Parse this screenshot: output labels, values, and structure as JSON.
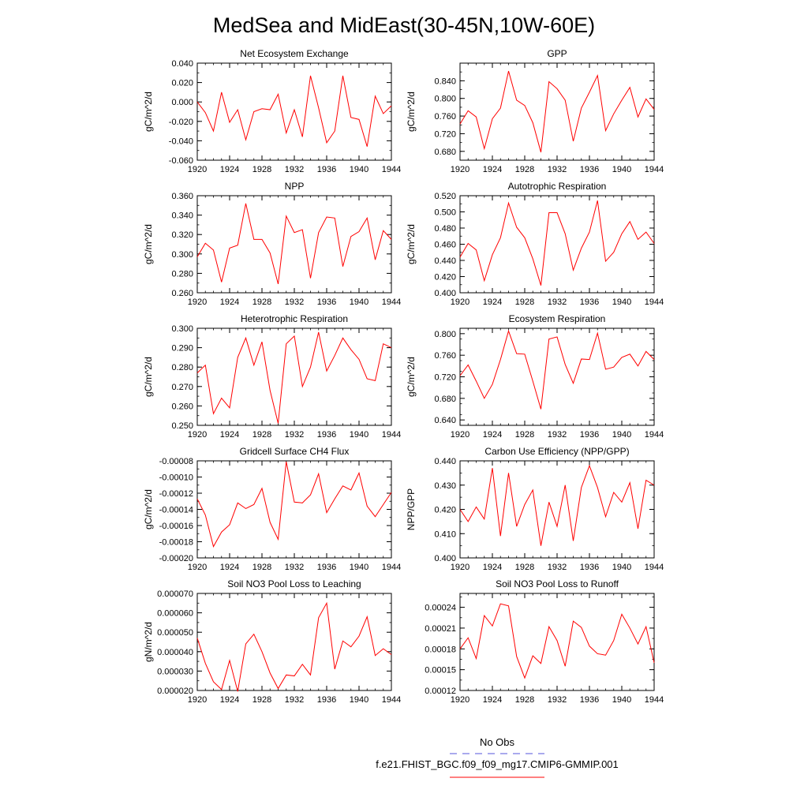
{
  "page": {
    "title": "MedSea and MidEast(30-45N,10W-60E)"
  },
  "legend": {
    "obs_label": "No Obs",
    "obs_color": "#5555dd",
    "case_label": "f.e21.FHIST_BGC.f09_f09_mg17.CMIP6-GMMIP.001",
    "case_color": "#ff0000"
  },
  "chart_data": [
    {
      "type": "line",
      "title": "Net Ecosystem Exchange",
      "ylabel": "gC/m^2/d",
      "ylim": [
        -0.06,
        0.04
      ],
      "yticks": [
        -0.06,
        -0.04,
        -0.02,
        0.0,
        0.02,
        0.04
      ],
      "ytick_labels": [
        "-0.060",
        "-0.040",
        "-0.020",
        "0.000",
        "0.020",
        "0.040"
      ],
      "xlim": [
        1920,
        1944
      ],
      "xticks": [
        1920,
        1924,
        1928,
        1932,
        1936,
        1940,
        1944
      ],
      "xtick_labels": [
        "1920",
        "1924",
        "1928",
        "1932",
        "1936",
        "1940",
        "1944"
      ],
      "x": [
        1920,
        1921,
        1922,
        1923,
        1924,
        1925,
        1926,
        1927,
        1928,
        1929,
        1930,
        1931,
        1932,
        1933,
        1934,
        1935,
        1936,
        1937,
        1938,
        1939,
        1940,
        1941,
        1942,
        1943,
        1944
      ],
      "series": [
        {
          "name": "f.e21.FHIST_BGC.f09_f09_mg17.CMIP6-GMMIP.001",
          "values": [
            0.0,
            -0.011,
            -0.03,
            0.01,
            -0.021,
            -0.008,
            -0.039,
            -0.01,
            -0.007,
            -0.008,
            0.008,
            -0.032,
            -0.008,
            -0.036,
            0.027,
            -0.006,
            -0.042,
            -0.03,
            0.027,
            -0.016,
            -0.018,
            -0.046,
            0.006,
            -0.012,
            -0.004
          ]
        }
      ]
    },
    {
      "type": "line",
      "title": "GPP",
      "ylabel": "gC/m^2/d",
      "ylim": [
        0.66,
        0.88
      ],
      "yticks": [
        0.68,
        0.72,
        0.76,
        0.8,
        0.84
      ],
      "ytick_labels": [
        "0.680",
        "0.720",
        "0.760",
        "0.800",
        "0.840"
      ],
      "xlim": [
        1920,
        1944
      ],
      "xticks": [
        1920,
        1924,
        1928,
        1932,
        1936,
        1940,
        1944
      ],
      "xtick_labels": [
        "1920",
        "1924",
        "1928",
        "1932",
        "1936",
        "1940",
        "1944"
      ],
      "x": [
        1920,
        1921,
        1922,
        1923,
        1924,
        1925,
        1926,
        1927,
        1928,
        1929,
        1930,
        1931,
        1932,
        1933,
        1934,
        1935,
        1936,
        1937,
        1938,
        1939,
        1940,
        1941,
        1942,
        1943,
        1944
      ],
      "series": [
        {
          "name": "f.e21.FHIST_BGC.f09_f09_mg17.CMIP6-GMMIP.001",
          "values": [
            0.742,
            0.772,
            0.758,
            0.686,
            0.754,
            0.778,
            0.862,
            0.796,
            0.784,
            0.745,
            0.678,
            0.838,
            0.822,
            0.796,
            0.703,
            0.778,
            0.814,
            0.852,
            0.727,
            0.765,
            0.796,
            0.825,
            0.758,
            0.799,
            0.775
          ]
        }
      ]
    },
    {
      "type": "line",
      "title": "NPP",
      "ylabel": "gC/m^2/d",
      "ylim": [
        0.26,
        0.36
      ],
      "yticks": [
        0.26,
        0.28,
        0.3,
        0.32,
        0.34,
        0.36
      ],
      "ytick_labels": [
        "0.260",
        "0.280",
        "0.300",
        "0.320",
        "0.340",
        "0.360"
      ],
      "xlim": [
        1920,
        1944
      ],
      "xticks": [
        1920,
        1924,
        1928,
        1932,
        1936,
        1940,
        1944
      ],
      "xtick_labels": [
        "1920",
        "1924",
        "1928",
        "1932",
        "1936",
        "1940",
        "1944"
      ],
      "x": [
        1920,
        1921,
        1922,
        1923,
        1924,
        1925,
        1926,
        1927,
        1928,
        1929,
        1930,
        1931,
        1932,
        1933,
        1934,
        1935,
        1936,
        1937,
        1938,
        1939,
        1940,
        1941,
        1942,
        1943,
        1944
      ],
      "series": [
        {
          "name": "f.e21.FHIST_BGC.f09_f09_mg17.CMIP6-GMMIP.001",
          "values": [
            0.297,
            0.311,
            0.304,
            0.271,
            0.306,
            0.309,
            0.352,
            0.315,
            0.315,
            0.301,
            0.269,
            0.339,
            0.322,
            0.325,
            0.275,
            0.322,
            0.338,
            0.337,
            0.287,
            0.318,
            0.323,
            0.337,
            0.294,
            0.324,
            0.315
          ]
        }
      ]
    },
    {
      "type": "line",
      "title": "Autotrophic Respiration",
      "ylabel": "gC/m^2/d",
      "ylim": [
        0.4,
        0.52
      ],
      "yticks": [
        0.4,
        0.42,
        0.44,
        0.46,
        0.48,
        0.5,
        0.52
      ],
      "ytick_labels": [
        "0.400",
        "0.420",
        "0.440",
        "0.460",
        "0.480",
        "0.500",
        "0.520"
      ],
      "xlim": [
        1920,
        1944
      ],
      "xticks": [
        1920,
        1924,
        1928,
        1932,
        1936,
        1940,
        1944
      ],
      "xtick_labels": [
        "1920",
        "1924",
        "1928",
        "1932",
        "1936",
        "1940",
        "1944"
      ],
      "x": [
        1920,
        1921,
        1922,
        1923,
        1924,
        1925,
        1926,
        1927,
        1928,
        1929,
        1930,
        1931,
        1932,
        1933,
        1934,
        1935,
        1936,
        1937,
        1938,
        1939,
        1940,
        1941,
        1942,
        1943,
        1944
      ],
      "series": [
        {
          "name": "f.e21.FHIST_BGC.f09_f09_mg17.CMIP6-GMMIP.001",
          "values": [
            0.444,
            0.461,
            0.453,
            0.415,
            0.447,
            0.468,
            0.511,
            0.481,
            0.468,
            0.442,
            0.409,
            0.499,
            0.499,
            0.473,
            0.428,
            0.455,
            0.475,
            0.514,
            0.439,
            0.45,
            0.473,
            0.488,
            0.466,
            0.475,
            0.461
          ]
        }
      ]
    },
    {
      "type": "line",
      "title": "Heterotrophic Respiration",
      "ylabel": "gC/m^2/d",
      "ylim": [
        0.25,
        0.3
      ],
      "yticks": [
        0.25,
        0.26,
        0.27,
        0.28,
        0.29,
        0.3
      ],
      "ytick_labels": [
        "0.250",
        "0.260",
        "0.270",
        "0.280",
        "0.290",
        "0.300"
      ],
      "xlim": [
        1920,
        1944
      ],
      "xticks": [
        1920,
        1924,
        1928,
        1932,
        1936,
        1940,
        1944
      ],
      "xtick_labels": [
        "1920",
        "1924",
        "1928",
        "1932",
        "1936",
        "1940",
        "1944"
      ],
      "x": [
        1920,
        1921,
        1922,
        1923,
        1924,
        1925,
        1926,
        1927,
        1928,
        1929,
        1930,
        1931,
        1932,
        1933,
        1934,
        1935,
        1936,
        1937,
        1938,
        1939,
        1940,
        1941,
        1942,
        1943,
        1944
      ],
      "series": [
        {
          "name": "f.e21.FHIST_BGC.f09_f09_mg17.CMIP6-GMMIP.001",
          "values": [
            0.277,
            0.281,
            0.256,
            0.264,
            0.259,
            0.285,
            0.295,
            0.281,
            0.293,
            0.268,
            0.251,
            0.292,
            0.296,
            0.27,
            0.28,
            0.298,
            0.278,
            0.286,
            0.295,
            0.289,
            0.284,
            0.274,
            0.273,
            0.292,
            0.29
          ]
        }
      ]
    },
    {
      "type": "line",
      "title": "Ecosystem Respiration",
      "ylabel": "gC/m^2/d",
      "ylim": [
        0.63,
        0.81
      ],
      "yticks": [
        0.64,
        0.68,
        0.72,
        0.76,
        0.8
      ],
      "ytick_labels": [
        "0.640",
        "0.680",
        "0.720",
        "0.760",
        "0.800"
      ],
      "xlim": [
        1920,
        1944
      ],
      "xticks": [
        1920,
        1924,
        1928,
        1932,
        1936,
        1940,
        1944
      ],
      "xtick_labels": [
        "1920",
        "1924",
        "1928",
        "1932",
        "1936",
        "1940",
        "1944"
      ],
      "x": [
        1920,
        1921,
        1922,
        1923,
        1924,
        1925,
        1926,
        1927,
        1928,
        1929,
        1930,
        1931,
        1932,
        1933,
        1934,
        1935,
        1936,
        1937,
        1938,
        1939,
        1940,
        1941,
        1942,
        1943,
        1944
      ],
      "series": [
        {
          "name": "f.e21.FHIST_BGC.f09_f09_mg17.CMIP6-GMMIP.001",
          "values": [
            0.722,
            0.742,
            0.712,
            0.68,
            0.706,
            0.752,
            0.805,
            0.763,
            0.762,
            0.712,
            0.66,
            0.79,
            0.794,
            0.743,
            0.708,
            0.753,
            0.752,
            0.801,
            0.734,
            0.738,
            0.756,
            0.762,
            0.74,
            0.767,
            0.752
          ]
        }
      ]
    },
    {
      "type": "line",
      "title": "Gridcell Surface CH4 Flux",
      "ylabel": "gC/m^2/d",
      "ylim": [
        -0.0002,
        -8e-05
      ],
      "yticks": [
        -0.0002,
        -0.00018,
        -0.00016,
        -0.00014,
        -0.00012,
        -0.0001,
        -8e-05
      ],
      "ytick_labels": [
        "-0.00020",
        "-0.00018",
        "-0.00016",
        "-0.00014",
        "-0.00012",
        "-0.00010",
        "-0.00008"
      ],
      "xlim": [
        1920,
        1944
      ],
      "xticks": [
        1920,
        1924,
        1928,
        1932,
        1936,
        1940,
        1944
      ],
      "xtick_labels": [
        "1920",
        "1924",
        "1928",
        "1932",
        "1936",
        "1940",
        "1944"
      ],
      "x": [
        1920,
        1921,
        1922,
        1923,
        1924,
        1925,
        1926,
        1927,
        1928,
        1929,
        1930,
        1931,
        1932,
        1933,
        1934,
        1935,
        1936,
        1937,
        1938,
        1939,
        1940,
        1941,
        1942,
        1943,
        1944
      ],
      "series": [
        {
          "name": "f.e21.FHIST_BGC.f09_f09_mg17.CMIP6-GMMIP.001",
          "values": [
            -0.000127,
            -0.000147,
            -0.000186,
            -0.000168,
            -0.000159,
            -0.000132,
            -0.000139,
            -0.000134,
            -0.000114,
            -0.000156,
            -0.000177,
            -8.1e-05,
            -0.000131,
            -0.000132,
            -0.000122,
            -9.6e-05,
            -0.000144,
            -0.000127,
            -0.000111,
            -0.000116,
            -9.5e-05,
            -0.000136,
            -0.000149,
            -0.000134,
            -0.000119
          ]
        }
      ]
    },
    {
      "type": "line",
      "title": "Carbon Use Efficiency (NPP/GPP)",
      "ylabel": "NPP/GPP",
      "ylim": [
        0.4,
        0.44
      ],
      "yticks": [
        0.4,
        0.41,
        0.42,
        0.43,
        0.44
      ],
      "ytick_labels": [
        "0.400",
        "0.410",
        "0.420",
        "0.430",
        "0.440"
      ],
      "xlim": [
        1920,
        1944
      ],
      "xticks": [
        1920,
        1924,
        1928,
        1932,
        1936,
        1940,
        1944
      ],
      "xtick_labels": [
        "1920",
        "1924",
        "1928",
        "1932",
        "1936",
        "1940",
        "1944"
      ],
      "x": [
        1920,
        1921,
        1922,
        1923,
        1924,
        1925,
        1926,
        1927,
        1928,
        1929,
        1930,
        1931,
        1932,
        1933,
        1934,
        1935,
        1936,
        1937,
        1938,
        1939,
        1940,
        1941,
        1942,
        1943,
        1944
      ],
      "series": [
        {
          "name": "f.e21.FHIST_BGC.f09_f09_mg17.CMIP6-GMMIP.001",
          "values": [
            0.42,
            0.415,
            0.421,
            0.416,
            0.437,
            0.409,
            0.435,
            0.413,
            0.422,
            0.428,
            0.405,
            0.423,
            0.413,
            0.43,
            0.407,
            0.429,
            0.438,
            0.429,
            0.417,
            0.427,
            0.423,
            0.431,
            0.412,
            0.432,
            0.43
          ]
        }
      ]
    },
    {
      "type": "line",
      "title": "Soil NO3 Pool Loss to Leaching",
      "ylabel": "gN/m^2/d",
      "ylim": [
        2e-05,
        7e-05
      ],
      "yticks": [
        2e-05,
        3e-05,
        4e-05,
        5e-05,
        6e-05,
        7e-05
      ],
      "ytick_labels": [
        "0.000020",
        "0.000030",
        "0.000040",
        "0.000050",
        "0.000060",
        "0.000070"
      ],
      "xlim": [
        1920,
        1944
      ],
      "xticks": [
        1920,
        1924,
        1928,
        1932,
        1936,
        1940,
        1944
      ],
      "xtick_labels": [
        "1920",
        "1924",
        "1928",
        "1932",
        "1936",
        "1940",
        "1944"
      ],
      "x": [
        1920,
        1921,
        1922,
        1923,
        1924,
        1925,
        1926,
        1927,
        1928,
        1929,
        1930,
        1931,
        1932,
        1933,
        1934,
        1935,
        1936,
        1937,
        1938,
        1939,
        1940,
        1941,
        1942,
        1943,
        1944
      ],
      "series": [
        {
          "name": "f.e21.FHIST_BGC.f09_f09_mg17.CMIP6-GMMIP.001",
          "values": [
            4.7e-05,
            3.4e-05,
            2.45e-05,
            2.05e-05,
            3.55e-05,
            1.95e-05,
            4.4e-05,
            4.9e-05,
            4e-05,
            2.9e-05,
            2.1e-05,
            2.8e-05,
            2.75e-05,
            3.35e-05,
            2.8e-05,
            5.75e-05,
            6.5e-05,
            3.1e-05,
            4.55e-05,
            4.25e-05,
            4.8e-05,
            5.8e-05,
            3.8e-05,
            4.15e-05,
            3.85e-05
          ]
        }
      ]
    },
    {
      "type": "line",
      "title": "Soil NO3 Pool Loss to Runoff",
      "ylabel": "",
      "ylim": [
        0.00012,
        0.00026
      ],
      "yticks": [
        0.00012,
        0.00015,
        0.00018,
        0.00021,
        0.00024
      ],
      "ytick_labels": [
        "0.00012",
        "0.00015",
        "0.00018",
        "0.00021",
        "0.00024"
      ],
      "xlim": [
        1920,
        1944
      ],
      "xticks": [
        1920,
        1924,
        1928,
        1932,
        1936,
        1940,
        1944
      ],
      "xtick_labels": [
        "1920",
        "1924",
        "1928",
        "1932",
        "1936",
        "1940",
        "1944"
      ],
      "x": [
        1920,
        1921,
        1922,
        1923,
        1924,
        1925,
        1926,
        1927,
        1928,
        1929,
        1930,
        1931,
        1932,
        1933,
        1934,
        1935,
        1936,
        1937,
        1938,
        1939,
        1940,
        1941,
        1942,
        1943,
        1944
      ],
      "series": [
        {
          "name": "f.e21.FHIST_BGC.f09_f09_mg17.CMIP6-GMMIP.001",
          "values": [
            0.00018,
            0.000196,
            0.000166,
            0.000228,
            0.000213,
            0.000245,
            0.000242,
            0.000169,
            0.000138,
            0.00017,
            0.000159,
            0.000212,
            0.000192,
            0.000155,
            0.00022,
            0.000211,
            0.000184,
            0.000173,
            0.000171,
            0.000192,
            0.00023,
            0.00021,
            0.000187,
            0.000212,
            0.00016
          ]
        }
      ]
    }
  ]
}
